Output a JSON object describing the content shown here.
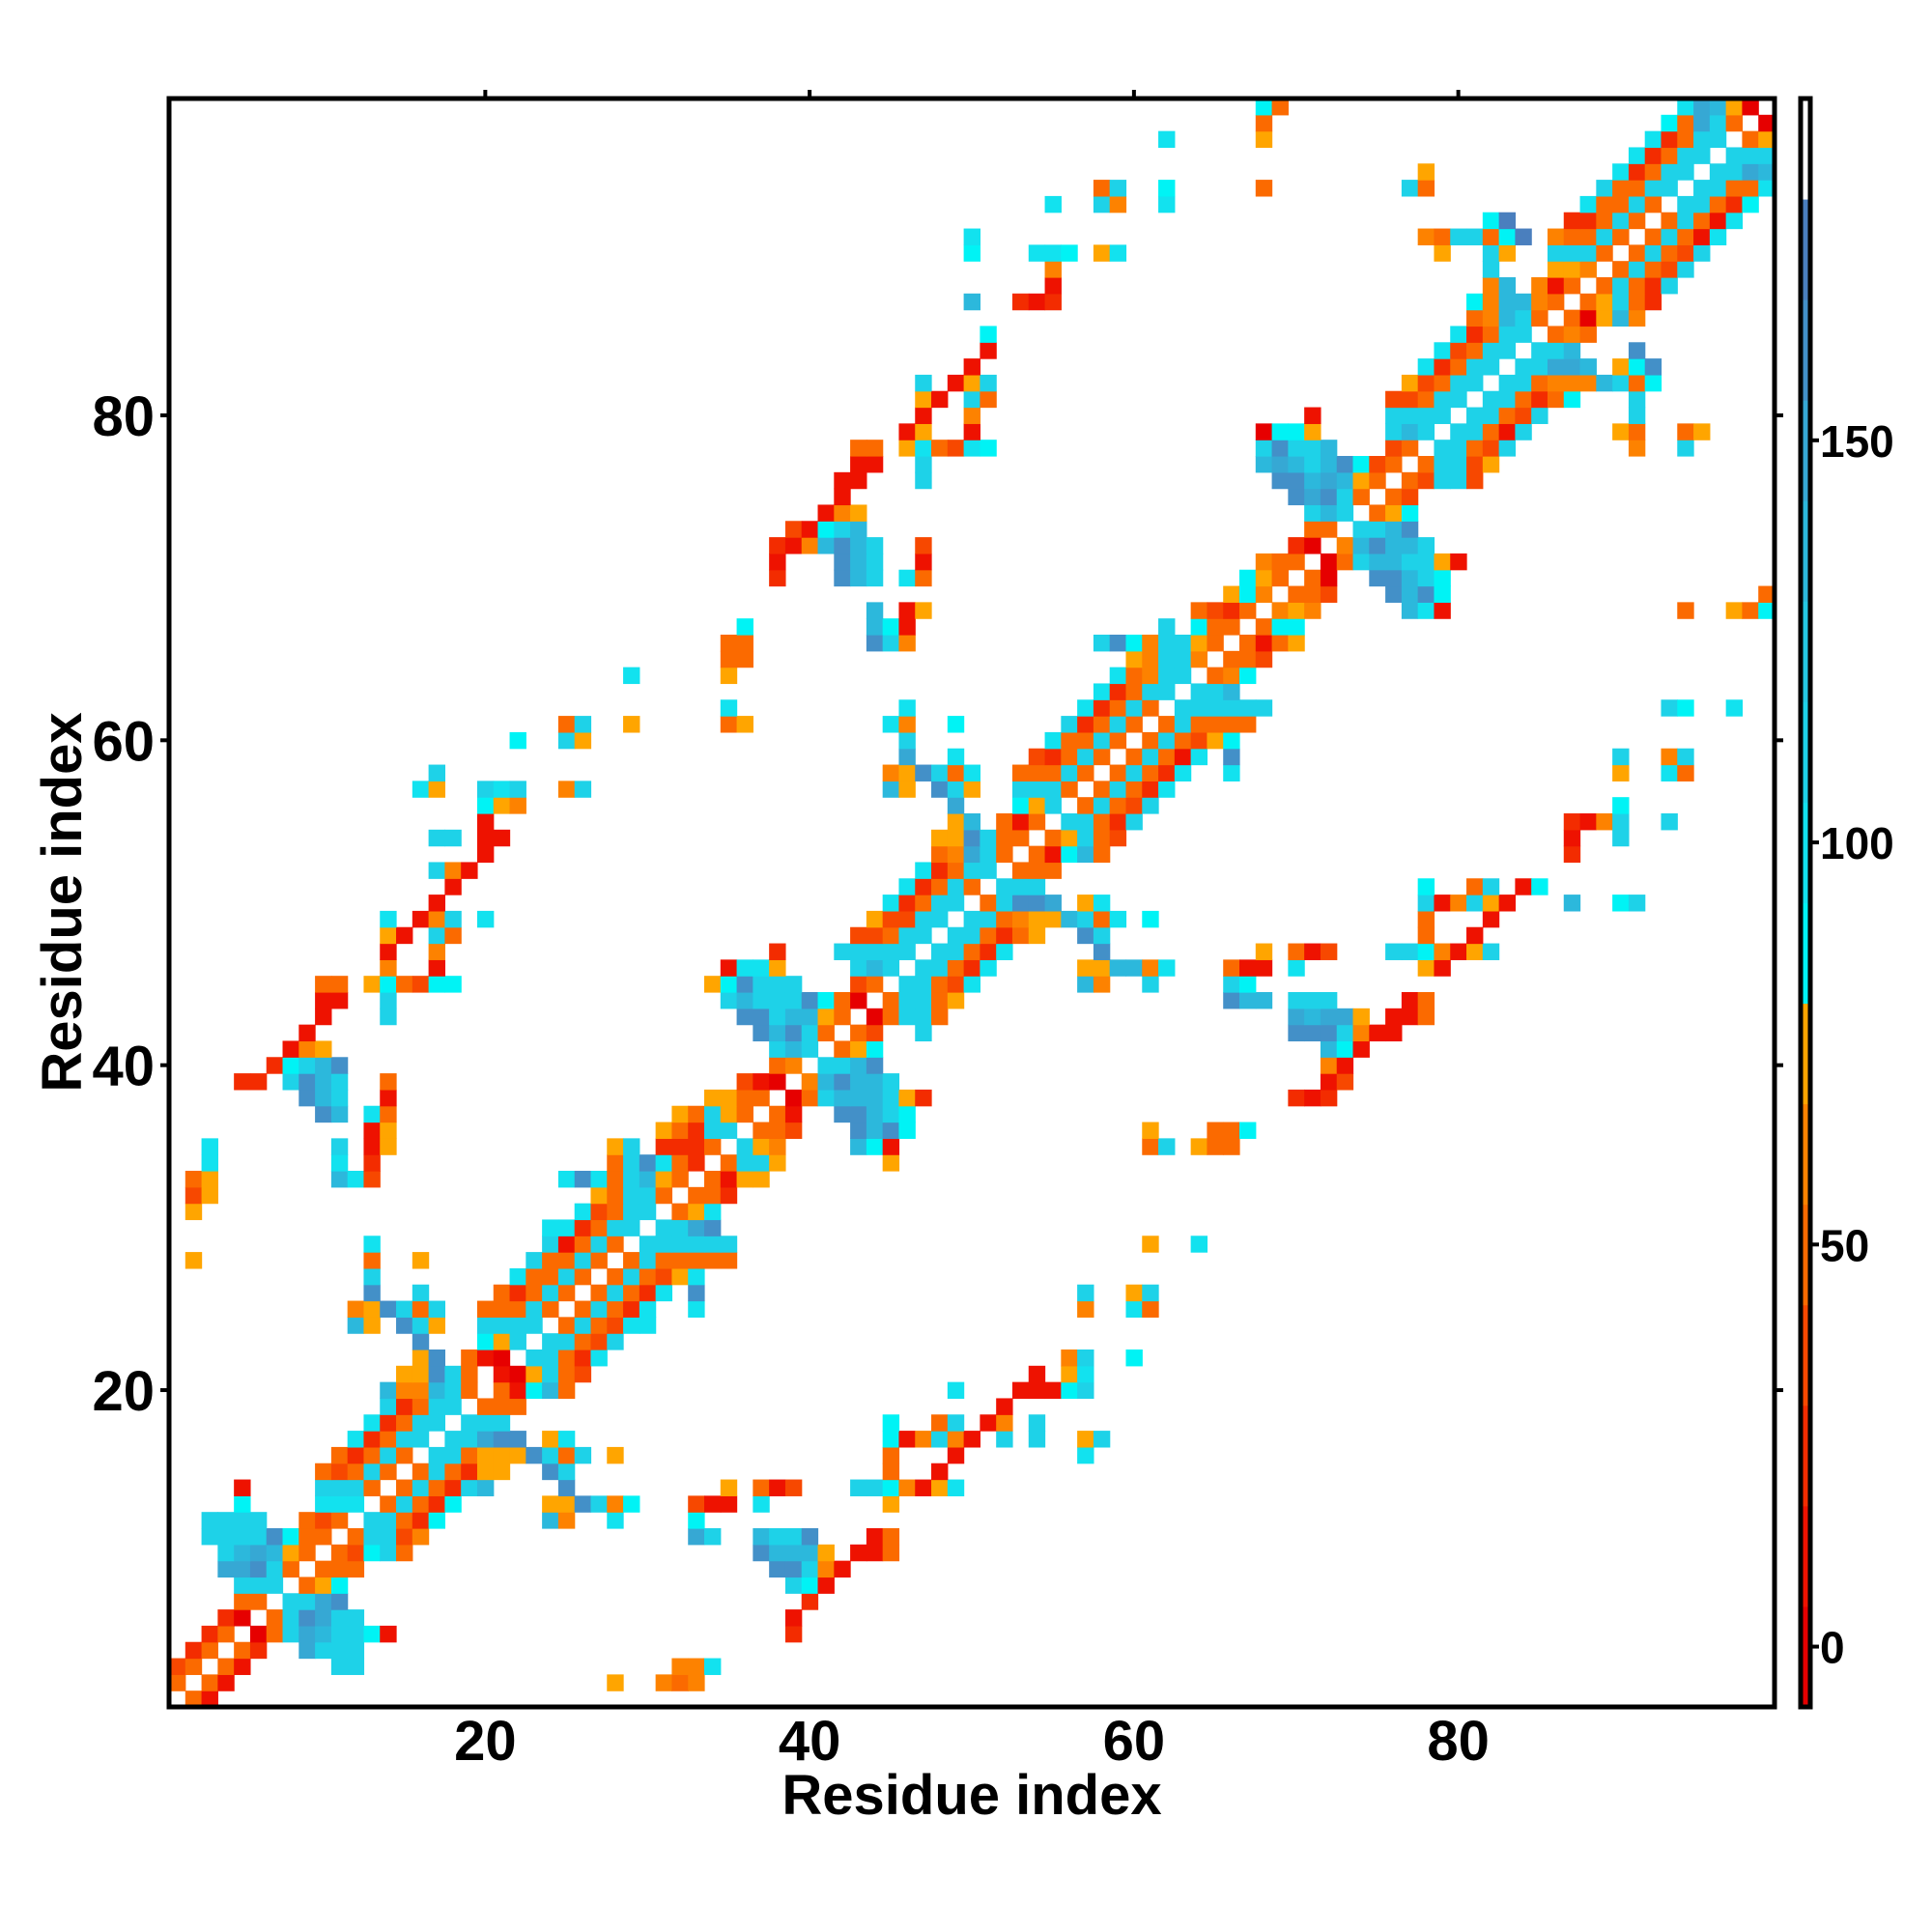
{
  "chart_data": {
    "type": "heatmap",
    "title": "",
    "xlabel": "Residue index",
    "ylabel": "Residue index",
    "xlim": [
      0.5,
      99.5
    ],
    "ylim": [
      0.5,
      99.5
    ],
    "xticks": [
      20,
      40,
      60,
      80
    ],
    "yticks": [
      20,
      40,
      60,
      80
    ],
    "grid": false,
    "legend": "colorbar-right",
    "colorbar": {
      "range": [
        -7.5,
        192.5
      ],
      "ticks": [
        0,
        50,
        100,
        150
      ],
      "bands": [
        {
          "code": "0",
          "min": -7.5,
          "max": 5,
          "color": "#e60000"
        },
        {
          "code": "1",
          "min": 5,
          "max": 17.5,
          "color": "#ee1200"
        },
        {
          "code": "2",
          "min": 17.5,
          "max": 30,
          "color": "#f32c00"
        },
        {
          "code": "3",
          "min": 30,
          "max": 42.5,
          "color": "#f74800"
        },
        {
          "code": "4",
          "min": 42.5,
          "max": 55,
          "color": "#fb6a00"
        },
        {
          "code": "5",
          "min": 55,
          "max": 67.5,
          "color": "#fd8200"
        },
        {
          "code": "6",
          "min": 67.5,
          "max": 80,
          "color": "#ffa500"
        },
        {
          "code": "7",
          "min": 80,
          "max": 92.5,
          "color": "#00f3f5"
        },
        {
          "code": "8",
          "min": 92.5,
          "max": 105,
          "color": "#12e2ef"
        },
        {
          "code": "9",
          "min": 105,
          "max": 117.5,
          "color": "#1ed2e8"
        },
        {
          "code": "a",
          "min": 117.5,
          "max": 130,
          "color": "#25c8e3"
        },
        {
          "code": "b",
          "min": 130,
          "max": 142.5,
          "color": "#2cb8dc"
        },
        {
          "code": "c",
          "min": 142.5,
          "max": 155,
          "color": "#36a8d4"
        },
        {
          "code": "d",
          "min": 155,
          "max": 167.5,
          "color": "#4390c8"
        },
        {
          "code": "e",
          "min": 167.5,
          "max": 180,
          "color": "#4a7fbe"
        },
        {
          "code": "w",
          "min": 180,
          "max": 192.5,
          "color": "#ffffff"
        }
      ]
    },
    "cells_by_row": {
      "1": "2:4 3:1",
      "2": "1:4 3:4 4:1 28:6 31:5 32:4 33:5",
      "3": "1:3 2:4 4:4 5:1 11:9 12:9 32:5 33:5 34:8",
      "4": "2:2 3:4 5:4 6:2 9:c 10:9 11:9 12:9",
      "5": "3:2 4:4 6:0 7:4 8:9 9:c 10:b 11:9 12:9 13:7 14:1 39:2",
      "6": "4:2 5:0 7:4 8:9 9:d 10:c 11:9 12:9 39:1",
      "7": "5:4 6:4 8:9 9:9 10:c 11:d 40:2",
      "8": "5:9 6:9 7:9 9:4 10:6 11:7 39:9 40:7 41:1",
      "9": "4:c 5:c 6:d 7:9 8:4 10:4 11:4 12:4 38:d 39:d 40:9 41:5 42:1",
      "10": "4:9 5:b 6:c 7:b 8:6 9:4 11:4 12:3 13:7 14:9 15:4 37:d 38:b 39:b 40:b 41:6 43:1 44:1 45:4",
      "11": "3:9 4:9 5:9 6:9 7:d 8:7 9:4 10:4 12:4 13:9 14:9 15:3 16:5 33:c 34:9 37:b 38:9 39:9 40:d 44:1 45:4",
      "12": "3:9 4:9 5:9 6:9 9:4 10:3 11:4 13:9 14:9 15:4 16:2 17:7 24:b 25:5 28:8 33:7",
      "13": "5:7 10:8 11:8 12:8 14:4 15:9 16:4 17:2 18:7 24:6 25:6 26:d 27:9 28:5 29:7 33:3 34:1 35:1 37:8 45:6",
      "14": "5:1 10:9 11:9 12:9 13:4 15:4 16:9 17:4 18:2 19:9 20:b 25:d 35:6 37:4 38:1 39:3 43:9 44:9 45:7 46:5 47:1 48:6 49:8",
      "15": "10:4 11:3 12:4 13:9 14:4 16:4 17:9 18:4 19:2 20:6 21:6 24:d 25:9 45:4 48:1",
      "16": "11:4 12:2 13:4 14:9 15:4 17:9 18:9 19:4 20:6 21:6 22:6 23:d 24:9 25:4 26:9 28:6 45:4 49:1 57:8",
      "17": "12:8 13:2 14:4 15:9 16:9 18:9 19:9 20:c 21:d 22:d 24:6 25:8 45:7 46:1 47:5 48:9 49:5 50:1 52:9 54:9 57:6 58:9",
      "18": "13:8 14:2 15:4 16:9 17:9 19:9 20:9 21:9 45:7 48:4 49:9 51:1 52:5 54:9",
      "19": "14:9 15:2 16:4 17:9 18:9 20:4 21:4 22:4 52:1",
      "20": "14:b 15:5 16:5 17:b 18:9 19:4 21:4 22:1 23:7 24:b 25:4 49:8 53:1 54:1 55:1 56:7 57:9",
      "21": "15:6 16:6 17:d 18:9 19:4 21:1 22:0 23:6 24:9 25:4 26:3 54:1 56:6 57:8",
      "22": "16:6 17:d 19:4 20:1 21:0 23:9 24:9 25:4 26:2 27:8 56:5 57:9 60:7",
      "23": "16:d 20:7 21:6 22:9 24:9 25:9 26:4 27:3 28:9",
      "24": "12:b 13:6 15:d 16:9 17:6 20:9 21:9 22:9 23:9 25:4 26:9 27:4 28:3 29:8 30:8",
      "25": "12:5 13:6 14:d 15:9 16:4 17:9 20:4 21:4 22:4 23:9 24:4 26:4 27:9 28:4 29:2 30:8 33:8 57:5 60:8 61:4",
      "26": "13:d 16:9 21:4 22:2 23:4 24:9 25:4 27:4 28:9 29:4 30:2 31:8 33:d 57:9 60:6 61:9",
      "27": "13:9 22:8 23:4 24:4 25:9 26:4 28:4 29:9 30:4 31:3 32:6 33:8",
      "28": "2:6 13:4 16:6 23:9 24:4 25:4 26:9 27:4 29:4 30:9 31:4 32:4 33:4 34:4 35:4",
      "29": "13:8 24:9 25:1 26:4 27:9 28:4 30:9 31:9 32:9 33:9 34:9 35:9 61:6 64:8",
      "30": "24:8 25:8 26:2 27:4 28:9 29:9 31:9 32:9 33:c 34:d",
      "31": "2:6 26:8 27:3 28:4 29:9 30:9 32:4 33:6 34:8",
      "32": "2:3 3:6 27:6 28:4 29:9 30:9 31:4 33:4 34:4 35:2",
      "33": "2:4 3:6 11:b 12:8 13:3 25:8 26:d 27:8 28:4 29:9 30:b 31:6 32:4 34:4 35:1 36:6 37:6",
      "34": "3:8 11:8 13:2 28:4 29:9 30:d 31:8 32:4 33:2 35:4 36:9 37:9 38:6 45:6",
      "35": "3:8 11:9 13:1 14:6 28:6 29:9 31:2 32:2 33:2 34:4 36:9 37:6 38:5 43:b 44:7 45:1 61:4 62:9 64:6 65:4 66:4",
      "36": "13:1 14:6 31:6 32:4 33:2 34:9 35:9 37:4 38:4 39:3 43:d 44:b 45:d 46:7 61:6 65:4 66:4 67:7",
      "37": "10:d 11:b 13:8 14:4 32:6 33:4 34:9 35:6 36:4 38:4 39:1 42:d 43:d 44:b 45:9 46:7",
      "38": "9:d 10:b 11:9 14:1 34:6 35:6 36:4 37:4 39:0 40:4 41:9 42:b 43:b 44:b 45:9 46:6 47:2 70:2 71:1 72:2",
      "39": "5:2 6:2 8:9 9:d 10:b 11:9 14:4 36:3 37:1 38:0 40:5 41:b 42:d 43:b 44:b 45:9 72:1 73:3",
      "40": "7:2 8:7 9:9 10:b 11:d 38:4 39:5 41:9 42:9 43:b 44:d 72:5 73:1",
      "41": "8:1 9:5 10:6 38:9 39:b 40:9 42:4 43:6 44:7 72:b 73:7 74:1",
      "42": "9:1 37:d 38:b 39:d 40:9 41:4 43:4 44:3 47:9 70:d 71:d 72:d 73:9 74:5 75:1 76:1",
      "43": "10:1 14:9 36:d 37:d 38:9 39:b 40:b 41:6 42:4 44:0 45:4 46:9 47:9 48:4 70:c 71:b 72:c 73:c 74:6 76:1 77:1 78:4",
      "44": "10:1 11:1 14:9 35:9 36:b 37:9 38:9 39:9 40:d 41:7 42:4 43:0 45:4 46:9 47:9 48:4 49:6 66:d 67:b 68:b 70:9 71:9 72:9 77:1 78:4",
      "45": "10:4 11:4 13:6 14:7 15:4 16:3 17:7 18:7 34:6 35:7 36:d 37:9 38:9 39:9 43:3 44:4 46:9 47:9 48:4 49:3 50:8 57:b 58:5 61:9 66:9 67:7",
      "46": "14:5 17:1 35:1 36:8 37:8 38:6 43:9 44:b 45:9 47:9 48:9 49:4 50:2 51:8 57:6 58:6 59:b 60:b 61:5 62:8 66:4 67:1 68:1 70:8 78:6 79:1",
      "47": "14:1 17:5 38:2 42:9 43:9 44:9 45:9 46:9 48:9 49:9 50:4 51:2 52:8 58:d 68:6 70:4 71:1 72:3 76:9 77:9 78:7 79:5 80:1 81:6 82:9",
      "48": "14:6 15:1 17:9 18:4 43:3 44:3 45:4 46:9 47:9 49:9 50:9 51:4 52:2 53:4 54:6 57:d 58:9 78:4 81:1",
      "49": "14:8 16:1 17:5 18:9 20:8 44:6 45:3 46:3 47:9 48:9 50:9 51:9 52:4 53:5 54:6 55:6 56:b 57:9 58:4 59:8 61:7 78:4 82:1",
      "50": "17:1 45:8 46:2 47:4 48:9 49:9 51:4 52:9 53:d 54:d 55:c 57:6 58:8 78:9 79:1 80:5 81:9 82:6 83:1 87:b 90:7 91:9",
      "51": "18:1 46:8 47:2 48:4 49:9 50:4 52:9 53:9 54:9 78:7 81:4 82:9 84:1 85:7",
      "52": "17:9 18:5 19:1 47:8 48:2 49:4 50:9 51:9 53:4 54:4 55:4",
      "53": "20:1 48:4 49:5 50:c 51:9 52:4 54:4 55:1 56:7 57:b 58:4 87:2",
      "54": "17:9 18:9 20:1 21:1 48:6 49:6 50:d 51:9 52:4 53:4 55:4 56:6 57:9 58:4 59:3 87:1 90:9",
      "55": "20:1 49:6 50:b 52:4 53:1 54:4 56:9 57:9 58:4 59:2 60:9 87:2 88:1 89:5 90:9 93:9",
      "56": "20:7 21:6 22:5 49:c 53:7 54:6 55:9 57:4 58:9 59:4 60:3 61:9 90:7",
      "57": "16:8 17:6 20:9 21:8 22:9 25:5 26:9 45:b 46:6 48:d 49:9 50:6 53:9 54:9 55:9 56:4 58:4 59:9 60:4 61:2 62:8",
      "58": "17:9 45:5 46:6 47:d 48:9 49:4 50:8 53:4 54:4 55:4 56:9 57:4 59:4 60:9 61:4 62:2 63:8 66:8 90:6 93:8 94:4",
      "59": "46:c 49:8 54:3 55:2 56:4 57:9 58:4 60:4 61:9 62:4 63:1 64:8 66:d 90:9 93:5 94:9",
      "60": "22:7 25:9 26:6 46:9 55:8 56:4 57:4 58:9 59:4 61:4 62:9 63:4 64:3 65:6 66:7",
      "61": "25:4 26:9 29:6 35:4 36:6 45:8 46:5 49:7 56:9 57:2 58:4 59:9 60:4 62:4 63:9 64:4 65:4 66:4 67:4",
      "62": "35:8 46:8 57:8 58:2 59:4 60:9 61:4 63:9 64:9 65:9 66:9 67:9 68:9 93:9 94:7 97:8",
      "63": "58:8 59:2 60:4 61:9 62:9 64:9 65:9 66:b",
      "64": "29:8 35:6 59:8 60:4 61:5 62:9 63:9 65:4 66:5 67:7",
      "65": "35:4 36:4 60:6 61:5 62:9 63:9 64:5 66:4 67:4 68:3",
      "66": "35:4 36:4 44:d 45:9 46:5 58:9 59:d 60:7 61:5 62:9 63:9 64:6 65:4 67:4 68:1 69:4 70:6",
      "67": "36:7 44:b 45:7 46:1 62:9 64:7 65:4 66:4 68:4 69:7 70:7",
      "68": "44:b 46:1 47:6 64:4 65:3 66:2 67:4 69:5 70:6 71:5 77:b 78:8 79:1 94:4 97:6 98:4 99:7",
      "69": "66:6 67:7 68:5 70:4 71:4 72:3 76:d 77:b 78:d 79:7 99:4",
      "70": "38:2 42:d 43:b 44:9 46:8 47:4 67:7 68:6 69:4 71:4 72:0 75:d 76:d 77:b 78:9 79:7",
      "71": "38:1 42:d 43:b 44:9 47:1 68:5 69:4 70:4 72:0 73:4 74:9 75:b 76:b 77:9 78:9 79:6 80:1",
      "72": "38:2 39:1 40:5 41:b 42:d 43:b 44:9 47:3 70:2 71:0 73:5 74:b 75:d 76:b 77:b 78:9",
      "73": "39:3 40:1 41:7 42:9 43:b 71:4 72:4 74:9 75:9 76:b 77:d",
      "74": "41:1 42:5 43:6 71:9 72:b 73:9 75:4 76:6 77:7",
      "75": "42:1 70:d 71:c 72:d 73:9 74:4 76:4 77:3",
      "76": "42:1 43:1 47:9 69:d 70:d 71:b 72:c 73:b 74:6 75:4 77:4 78:3 79:9 80:9 81:3",
      "77": "43:1 44:1 47:9 68:b 69:c 70:b 71:9 72:b 73:d 74:7 75:3 76:4 78:4 79:9 80:9 81:3 82:6",
      "78": "43:4 44:4 46:6 47:8 48:4 49:3 50:8 51:7 68:9 69:d 70:9 71:9 72:b 76:3 77:4 79:9 80:9 81:4 82:3 83:9 91:5 94:9",
      "79": "46:1 47:6 50:1 68:0 69:7 70:7 71:6 76:9 77:b 78:9 80:9 81:9 82:4 83:1 84:9 90:6 91:4 94:4 95:6",
      "80": "47:1 50:5 71:1 76:9 77:9 78:9 79:9 81:9 82:9 83:4 84:3 85:9 91:9",
      "81": "47:6 48:1 50:9 51:4 76:3 77:3 78:4 79:9 80:9 82:9 83:9 84:4 85:2 86:4 87:7 91:9",
      "82": "47:9 49:1 50:6 51:9 77:6 78:3 79:4 80:9 81:9 83:9 84:9 85:4 86:5 87:5 88:5 89:b 90:9 91:4 92:7",
      "83": "50:1 78:8 79:2 80:4 81:9 82:9 84:9 85:9 86:c 87:c 88:b 90:6 91:7 92:d",
      "84": "51:1 79:8 80:3 81:4 82:9 83:9 85:9 86:9 87:b 91:d",
      "85": "51:7 80:8 81:2 82:4 83:9 84:9 86:4 87:5 88:4",
      "86": "81:4 82:5 83:b 84:9 85:4 87:4 88:0 89:6 90:b 91:5",
      "87": "50:b 53:2 54:1 55:2 81:7 82:5 83:b 84:b 85:5 86:4 88:4 89:6 90:9 91:4 92:2",
      "88": "55:1 82:5 83:b 85:5 86:1 87:4 89:4 90:9 91:4 92:2 93:9",
      "89": "55:5 82:9 86:6 87:6 88:5 90:4 91:9 92:4 93:3 94:9",
      "90": "50:7 54:8 55:8 56:7 58:6 59:8 79:6 82:9 83:6 86:9 87:9 88:9 89:4 91:4 92:9 93:4 94:3 95:9",
      "91": "50:8 78:5 79:4 80:9 81:9 82:4 83:7 84:e 86:5 87:4 88:4 89:9 90:4 92:4 93:9 94:4 95:1 96:8",
      "92": "82:7 83:e 87:2 88:2 89:4 90:9 91:4 93:4 94:9 95:4 96:1 97:8",
      "93": "55:8 58:9 59:5 62:8 88:8 89:4 90:4 91:9 92:4 94:9 95:9 96:4 97:2 98:7",
      "94": "58:4 59:9 62:7 68:4 77:9 78:4 89:9 90:4 91:4 92:9 93:9 95:9 96:9 97:4 98:4 99:8",
      "95": "78:6 90:8 91:2 92:4 93:9 94:9 96:9 97:9 98:c 99:b",
      "96": "91:8 92:2 93:4 94:9 95:9 97:9 98:9 99:9",
      "97": "62:8 68:6 92:8 93:2 94:4 95:9 96:9 98:4 99:6",
      "98": "68:4 93:7 94:4 95:c 96:9 97:4 99:0",
      "99": "68:7 69:4 94:8 95:c 96:b 97:6 98:0"
    }
  }
}
